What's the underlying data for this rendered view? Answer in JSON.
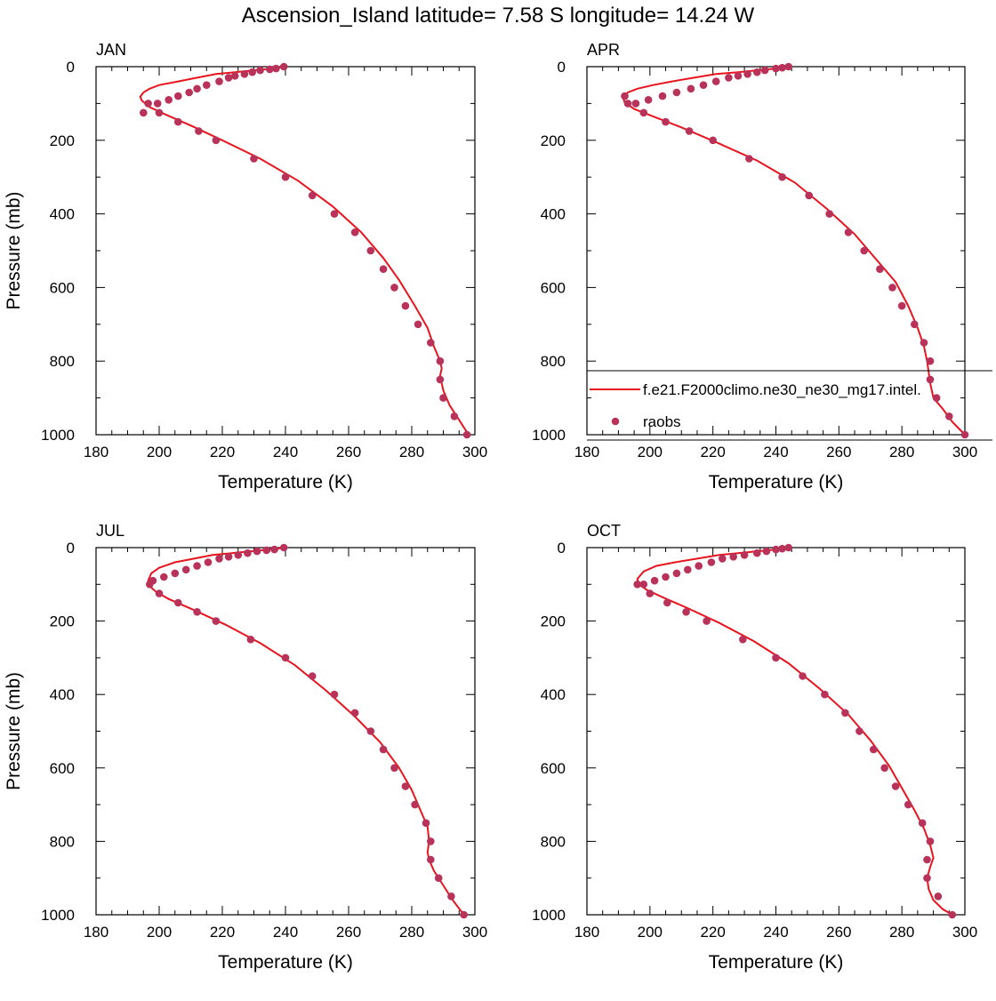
{
  "title": "Ascension_Island  latitude= 7.58 S longitude= 14.24 W",
  "colors": {
    "model_line": "#e8141e",
    "raobs_marker": "#b8325a",
    "axes": "#000000"
  },
  "legend": {
    "panel": "APR",
    "placement": "lower-right",
    "entries": [
      {
        "label": "f.e21.F2000climo.ne30_ne30_mg17.intel.",
        "style": "line"
      },
      {
        "label": "raobs",
        "style": "marker"
      }
    ]
  },
  "chart_data": [
    {
      "type": "line",
      "panel": "JAN",
      "xlabel": "Temperature (K)",
      "ylabel": "Pressure (mb)",
      "xlim": [
        180,
        300
      ],
      "ylim": [
        0,
        1000
      ],
      "y_inverted": true,
      "x_ticks": [
        "180",
        "200",
        "220",
        "240",
        "260",
        "280",
        "300"
      ],
      "y_ticks": [
        "0",
        "200",
        "400",
        "600",
        "800",
        "1000"
      ],
      "grid": false,
      "series": [
        {
          "name": "f.e21.F2000climo.ne30_ne30_mg17.intel.",
          "kind": "line",
          "x": [
            240,
            236,
            230,
            224,
            218,
            212,
            206,
            200,
            197,
            195,
            194,
            194.5,
            197,
            202,
            210,
            220,
            232,
            244,
            255,
            264,
            271,
            276,
            281,
            285,
            287,
            289,
            289.5,
            289,
            290,
            292,
            295,
            298
          ],
          "y": [
            0,
            5,
            10,
            15,
            20,
            30,
            40,
            50,
            60,
            70,
            82,
            92,
            110,
            130,
            160,
            200,
            250,
            310,
            380,
            450,
            520,
            580,
            650,
            710,
            760,
            800,
            820,
            840,
            880,
            920,
            960,
            1000
          ]
        },
        {
          "name": "raobs",
          "kind": "scatter",
          "x": [
            239.5,
            237,
            235,
            232,
            229.5,
            227,
            224,
            222,
            219,
            215,
            212,
            209.5,
            206,
            203,
            199.5,
            196.5,
            195,
            200,
            206,
            212.5,
            218,
            230,
            240,
            248.5,
            255.5,
            262,
            267,
            271,
            274.5,
            278,
            282,
            286,
            289,
            289,
            290,
            293.5,
            297.5
          ],
          "y": [
            0,
            5,
            7,
            10,
            15,
            20,
            25,
            30,
            40,
            50,
            60,
            70,
            80,
            90,
            100,
            100,
            125,
            125,
            150,
            175,
            200,
            250,
            300,
            350,
            400,
            450,
            500,
            550,
            600,
            650,
            700,
            750,
            800,
            850,
            900,
            950,
            1000
          ]
        }
      ]
    },
    {
      "type": "line",
      "panel": "APR",
      "xlabel": "Temperature (K)",
      "ylabel": "",
      "xlim": [
        180,
        300
      ],
      "ylim": [
        0,
        1000
      ],
      "y_inverted": true,
      "x_ticks": [
        "180",
        "200",
        "220",
        "240",
        "260",
        "280",
        "300"
      ],
      "y_ticks": [
        "0",
        "200",
        "400",
        "600",
        "800",
        "1000"
      ],
      "grid": false,
      "series": [
        {
          "name": "f.e21.F2000climo.ne30_ne30_mg17.intel.",
          "kind": "line",
          "x": [
            245,
            240,
            234,
            228,
            221,
            214,
            207,
            201,
            196,
            193,
            191.5,
            192,
            195,
            201,
            210,
            221,
            234,
            246,
            256,
            265,
            272,
            278,
            282,
            285,
            287,
            288,
            288.5,
            289,
            290,
            293,
            296,
            300
          ],
          "y": [
            0,
            5,
            10,
            15,
            20,
            30,
            40,
            50,
            60,
            70,
            85,
            97,
            115,
            135,
            165,
            205,
            255,
            315,
            385,
            455,
            525,
            585,
            650,
            710,
            760,
            800,
            830,
            860,
            900,
            930,
            965,
            1000
          ]
        },
        {
          "name": "raobs",
          "kind": "scatter",
          "x": [
            244,
            242,
            240,
            236.5,
            234,
            231,
            228,
            225,
            221,
            217,
            213,
            208.5,
            204,
            199.5,
            195.5,
            192,
            193,
            198,
            205,
            212.5,
            220,
            231.5,
            242,
            250.5,
            257,
            263,
            268,
            273,
            277,
            280,
            284,
            287,
            289,
            289,
            291,
            295,
            300
          ],
          "y": [
            0,
            3,
            5,
            10,
            15,
            20,
            25,
            30,
            40,
            50,
            60,
            70,
            80,
            90,
            100,
            80,
            100,
            125,
            150,
            175,
            200,
            250,
            300,
            350,
            400,
            450,
            500,
            550,
            600,
            650,
            700,
            750,
            800,
            850,
            900,
            950,
            1000
          ]
        }
      ]
    },
    {
      "type": "line",
      "panel": "JUL",
      "xlabel": "Temperature (K)",
      "ylabel": "Pressure (mb)",
      "xlim": [
        180,
        300
      ],
      "ylim": [
        0,
        1000
      ],
      "y_inverted": true,
      "x_ticks": [
        "180",
        "200",
        "220",
        "240",
        "260",
        "280",
        "300"
      ],
      "y_ticks": [
        "0",
        "200",
        "400",
        "600",
        "800",
        "1000"
      ],
      "grid": false,
      "series": [
        {
          "name": "f.e21.F2000climo.ne30_ne30_mg17.intel.",
          "kind": "line",
          "x": [
            240,
            235,
            229,
            223,
            217,
            211,
            205,
            200,
            197.5,
            196.5,
            197,
            199,
            203,
            211,
            221,
            232,
            243,
            253,
            262,
            270,
            276,
            280,
            283,
            285,
            285.5,
            285,
            285.5,
            287,
            290,
            293,
            296.5
          ],
          "y": [
            0,
            5,
            10,
            15,
            20,
            30,
            40,
            55,
            70,
            90,
            105,
            120,
            140,
            170,
            210,
            260,
            320,
            390,
            460,
            530,
            600,
            660,
            720,
            760,
            800,
            830,
            850,
            880,
            920,
            960,
            1000
          ]
        },
        {
          "name": "raobs",
          "kind": "scatter",
          "x": [
            239.5,
            236.5,
            234,
            231,
            228,
            225,
            222,
            219,
            215.5,
            212,
            208.5,
            205,
            201.5,
            198,
            197,
            200,
            206,
            212,
            218,
            229,
            240,
            248.5,
            255.5,
            262,
            267,
            271,
            274.5,
            278,
            281,
            284.5,
            286,
            286,
            288.5,
            292.5,
            296.5
          ],
          "y": [
            0,
            5,
            7,
            10,
            15,
            20,
            25,
            30,
            40,
            50,
            60,
            70,
            80,
            90,
            100,
            125,
            150,
            175,
            200,
            250,
            300,
            350,
            400,
            450,
            500,
            550,
            600,
            650,
            700,
            750,
            800,
            850,
            900,
            950,
            1000
          ]
        }
      ]
    },
    {
      "type": "line",
      "panel": "OCT",
      "xlabel": "Temperature (K)",
      "ylabel": "",
      "xlim": [
        180,
        300
      ],
      "ylim": [
        0,
        1000
      ],
      "y_inverted": true,
      "x_ticks": [
        "180",
        "200",
        "220",
        "240",
        "260",
        "280",
        "300"
      ],
      "y_ticks": [
        "0",
        "200",
        "400",
        "600",
        "800",
        "1000"
      ],
      "grid": false,
      "series": [
        {
          "name": "f.e21.F2000climo.ne30_ne30_mg17.intel.",
          "kind": "line",
          "x": [
            245,
            240,
            234,
            228,
            222,
            215,
            208,
            202,
            198,
            196,
            196.5,
            199,
            204,
            212,
            222,
            233,
            244,
            254,
            263,
            270,
            276,
            280,
            284,
            287,
            289,
            290,
            289,
            288,
            288.5,
            290,
            293,
            296
          ],
          "y": [
            0,
            5,
            10,
            15,
            20,
            30,
            40,
            50,
            65,
            85,
            100,
            115,
            135,
            165,
            205,
            255,
            315,
            385,
            455,
            525,
            595,
            655,
            715,
            765,
            810,
            845,
            870,
            900,
            930,
            960,
            985,
            1000
          ]
        },
        {
          "name": "raobs",
          "kind": "scatter",
          "x": [
            244,
            242,
            240,
            237,
            234,
            230,
            226.5,
            223,
            219.5,
            215.5,
            212,
            208.5,
            205,
            201.5,
            198,
            196,
            200,
            205.5,
            211.5,
            218,
            229.5,
            240,
            248.5,
            255.5,
            262,
            266.5,
            271,
            274.5,
            278,
            282,
            286.5,
            289,
            288,
            288,
            291.5,
            296
          ],
          "y": [
            0,
            3,
            5,
            10,
            15,
            20,
            25,
            30,
            40,
            50,
            60,
            70,
            80,
            90,
            100,
            100,
            125,
            150,
            175,
            200,
            250,
            300,
            350,
            400,
            450,
            500,
            550,
            600,
            650,
            700,
            750,
            800,
            850,
            900,
            950,
            1000
          ]
        }
      ]
    }
  ]
}
